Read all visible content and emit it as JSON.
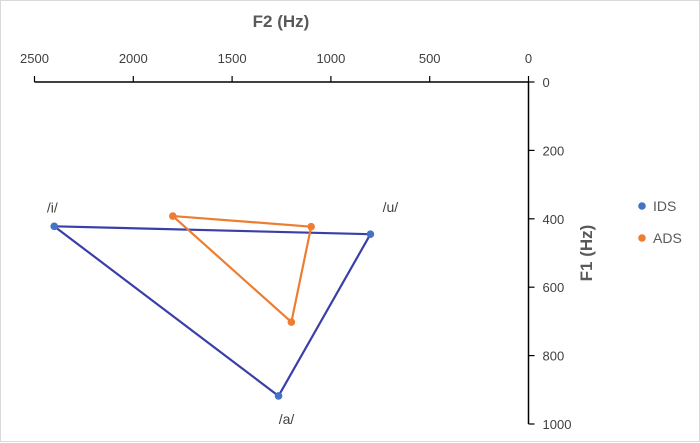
{
  "chart_data": {
    "type": "scatter",
    "xlabel": "F2 (Hz)",
    "ylabel": "F1 (Hz)",
    "xlim": [
      2500,
      0
    ],
    "ylim": [
      0,
      1000
    ],
    "x_axis_position": "top",
    "y_axis_position": "right",
    "x_reversed": true,
    "y_reversed": true,
    "xticks": [
      2500,
      2000,
      1500,
      1000,
      500,
      0
    ],
    "yticks": [
      0,
      200,
      400,
      600,
      800,
      1000
    ],
    "grid": false,
    "legend_position": "right",
    "series": [
      {
        "name": "IDS",
        "color": "#4472C4",
        "line_color": "#3A3FA8",
        "closed": true,
        "points": [
          {
            "label": "/i/",
            "x": 2400,
            "y": 422
          },
          {
            "label": "/u/",
            "x": 800,
            "y": 445
          },
          {
            "label": "/a/",
            "x": 1265,
            "y": 918
          }
        ]
      },
      {
        "name": "ADS",
        "color": "#ED7D31",
        "line_color": "#ED7D31",
        "closed": true,
        "points": [
          {
            "x": 1800,
            "y": 392
          },
          {
            "x": 1100,
            "y": 423
          },
          {
            "x": 1200,
            "y": 702
          }
        ]
      }
    ]
  }
}
